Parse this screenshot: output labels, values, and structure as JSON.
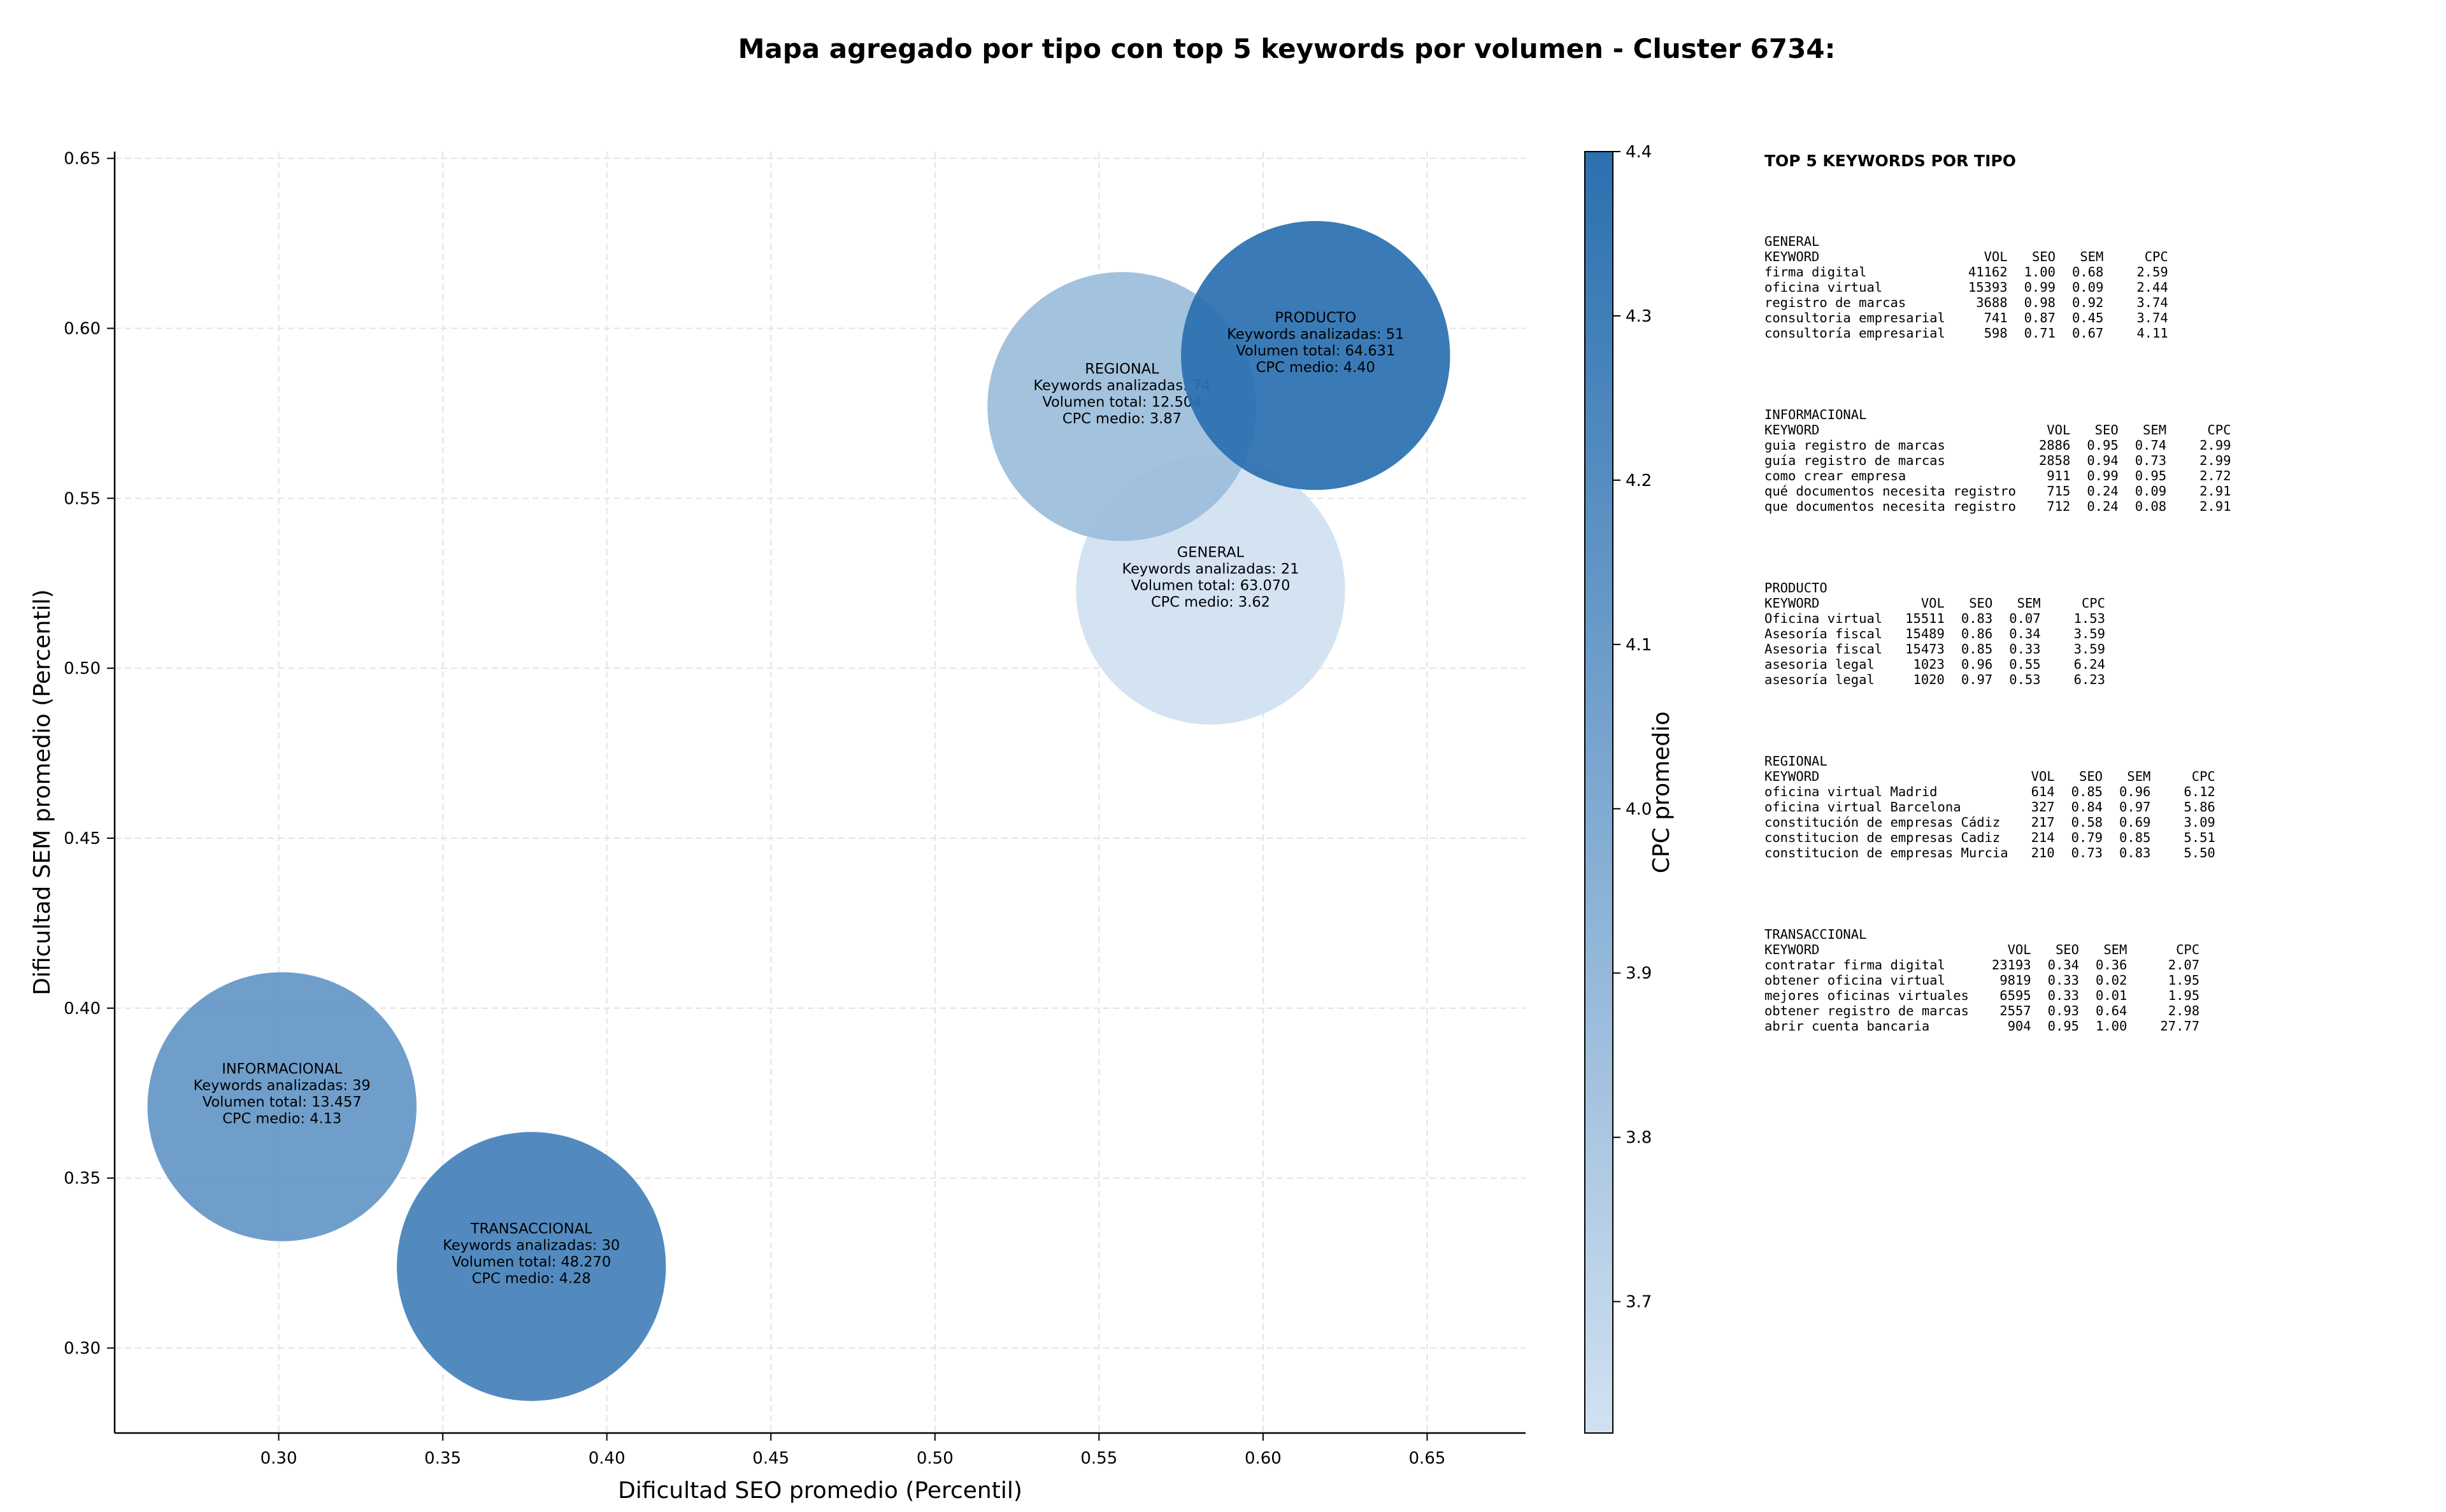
{
  "title": "Mapa agregado por tipo con top 5 keywords por volumen - Cluster 6734:",
  "chart_data": {
    "type": "scatter",
    "subtype": "bubble",
    "xlabel": "Dificultad SEO promedio (Percentil)",
    "ylabel": "Dificultad SEM promedio (Percentil)",
    "xlim": [
      0.25,
      0.68
    ],
    "ylim": [
      0.275,
      0.652
    ],
    "x_ticks": [
      "0.30",
      "0.35",
      "0.40",
      "0.45",
      "0.50",
      "0.55",
      "0.60",
      "0.65"
    ],
    "y_ticks": [
      "0.30",
      "0.35",
      "0.40",
      "0.45",
      "0.50",
      "0.55",
      "0.60",
      "0.65"
    ],
    "grid": true,
    "colorbar": {
      "label": "CPC promedio",
      "range": [
        3.62,
        4.4
      ],
      "ticks": [
        "3.7",
        "3.8",
        "3.9",
        "4.0",
        "4.1",
        "4.2",
        "4.3",
        "4.4"
      ],
      "colors": [
        "#d1e1f1",
        "#2b70b0"
      ]
    },
    "points": [
      {
        "type": "GENERAL",
        "x": 0.584,
        "y": 0.523,
        "keywords": 21,
        "volume": 63070,
        "cpc": 3.62,
        "label_lines": [
          "Keywords analizadas: 21",
          "Volumen total: 63.070",
          "CPC medio: 3.62"
        ]
      },
      {
        "type": "INFORMACIONAL",
        "x": 0.301,
        "y": 0.371,
        "keywords": 39,
        "volume": 13457,
        "cpc": 4.13,
        "label_lines": [
          "Keywords analizadas: 39",
          "Volumen total: 13.457",
          "CPC medio: 4.13"
        ]
      },
      {
        "type": "PRODUCTO",
        "x": 0.616,
        "y": 0.592,
        "keywords": 51,
        "volume": 64631,
        "cpc": 4.4,
        "label_lines": [
          "Keywords analizadas: 51",
          "Volumen total: 64.631",
          "CPC medio: 4.40"
        ]
      },
      {
        "type": "REGIONAL",
        "x": 0.557,
        "y": 0.577,
        "keywords": 74,
        "volume": 12504,
        "cpc": 3.87,
        "label_lines": [
          "Keywords analizadas: 74",
          "Volumen total: 12.504",
          "CPC medio: 3.87"
        ]
      },
      {
        "type": "TRANSACCIONAL",
        "x": 0.377,
        "y": 0.324,
        "keywords": 30,
        "volume": 48270,
        "cpc": 4.28,
        "label_lines": [
          "Keywords analizadas: 30",
          "Volumen total: 48.270",
          "CPC medio: 4.28"
        ]
      }
    ],
    "draw_order": [
      "GENERAL",
      "REGIONAL",
      "PRODUCTO",
      "INFORMACIONAL",
      "TRANSACCIONAL"
    ]
  },
  "keywords_panel": {
    "title": "TOP 5 KEYWORDS POR TIPO",
    "columns": [
      "KEYWORD",
      "VOL",
      "SEO",
      "SEM",
      "CPC"
    ],
    "groups": [
      {
        "type": "GENERAL",
        "rows": [
          [
            "firma digital",
            "41162",
            "1.00",
            "0.68",
            "2.59"
          ],
          [
            "oficina virtual",
            "15393",
            "0.99",
            "0.09",
            "2.44"
          ],
          [
            "registro de marcas",
            "3688",
            "0.98",
            "0.92",
            "3.74"
          ],
          [
            "consultoria empresarial",
            "741",
            "0.87",
            "0.45",
            "3.74"
          ],
          [
            "consultoría empresarial",
            "598",
            "0.71",
            "0.67",
            "4.11"
          ]
        ]
      },
      {
        "type": "INFORMACIONAL",
        "rows": [
          [
            "guia registro de marcas",
            "2886",
            "0.95",
            "0.74",
            "2.99"
          ],
          [
            "guía registro de marcas",
            "2858",
            "0.94",
            "0.73",
            "2.99"
          ],
          [
            "como crear empresa",
            "911",
            "0.99",
            "0.95",
            "2.72"
          ],
          [
            "qué documentos necesita registro",
            "715",
            "0.24",
            "0.09",
            "2.91"
          ],
          [
            "que documentos necesita registro",
            "712",
            "0.24",
            "0.08",
            "2.91"
          ]
        ]
      },
      {
        "type": "PRODUCTO",
        "rows": [
          [
            "Oficina virtual",
            "15511",
            "0.83",
            "0.07",
            "1.53"
          ],
          [
            "Asesoría fiscal",
            "15489",
            "0.86",
            "0.34",
            "3.59"
          ],
          [
            "Asesoria fiscal",
            "15473",
            "0.85",
            "0.33",
            "3.59"
          ],
          [
            "asesoria legal",
            "1023",
            "0.96",
            "0.55",
            "6.24"
          ],
          [
            "asesoría legal",
            "1020",
            "0.97",
            "0.53",
            "6.23"
          ]
        ]
      },
      {
        "type": "REGIONAL",
        "rows": [
          [
            "oficina virtual Madrid",
            "614",
            "0.85",
            "0.96",
            "6.12"
          ],
          [
            "oficina virtual Barcelona",
            "327",
            "0.84",
            "0.97",
            "5.86"
          ],
          [
            "constitución de empresas Cádiz",
            "217",
            "0.58",
            "0.69",
            "3.09"
          ],
          [
            "constitucion de empresas Cadiz",
            "214",
            "0.79",
            "0.85",
            "5.51"
          ],
          [
            "constitucion de empresas Murcia",
            "210",
            "0.73",
            "0.83",
            "5.50"
          ]
        ]
      },
      {
        "type": "TRANSACCIONAL",
        "rows": [
          [
            "contratar firma digital",
            "23193",
            "0.34",
            "0.36",
            "2.07"
          ],
          [
            "obtener oficina virtual",
            "9819",
            "0.33",
            "0.02",
            "1.95"
          ],
          [
            "mejores oficinas virtuales",
            "6595",
            "0.33",
            "0.01",
            "1.95"
          ],
          [
            "obtener registro de marcas",
            "2557",
            "0.93",
            "0.64",
            "2.98"
          ],
          [
            "abrir cuenta bancaria",
            "904",
            "0.95",
            "1.00",
            "27.77"
          ]
        ]
      }
    ]
  }
}
